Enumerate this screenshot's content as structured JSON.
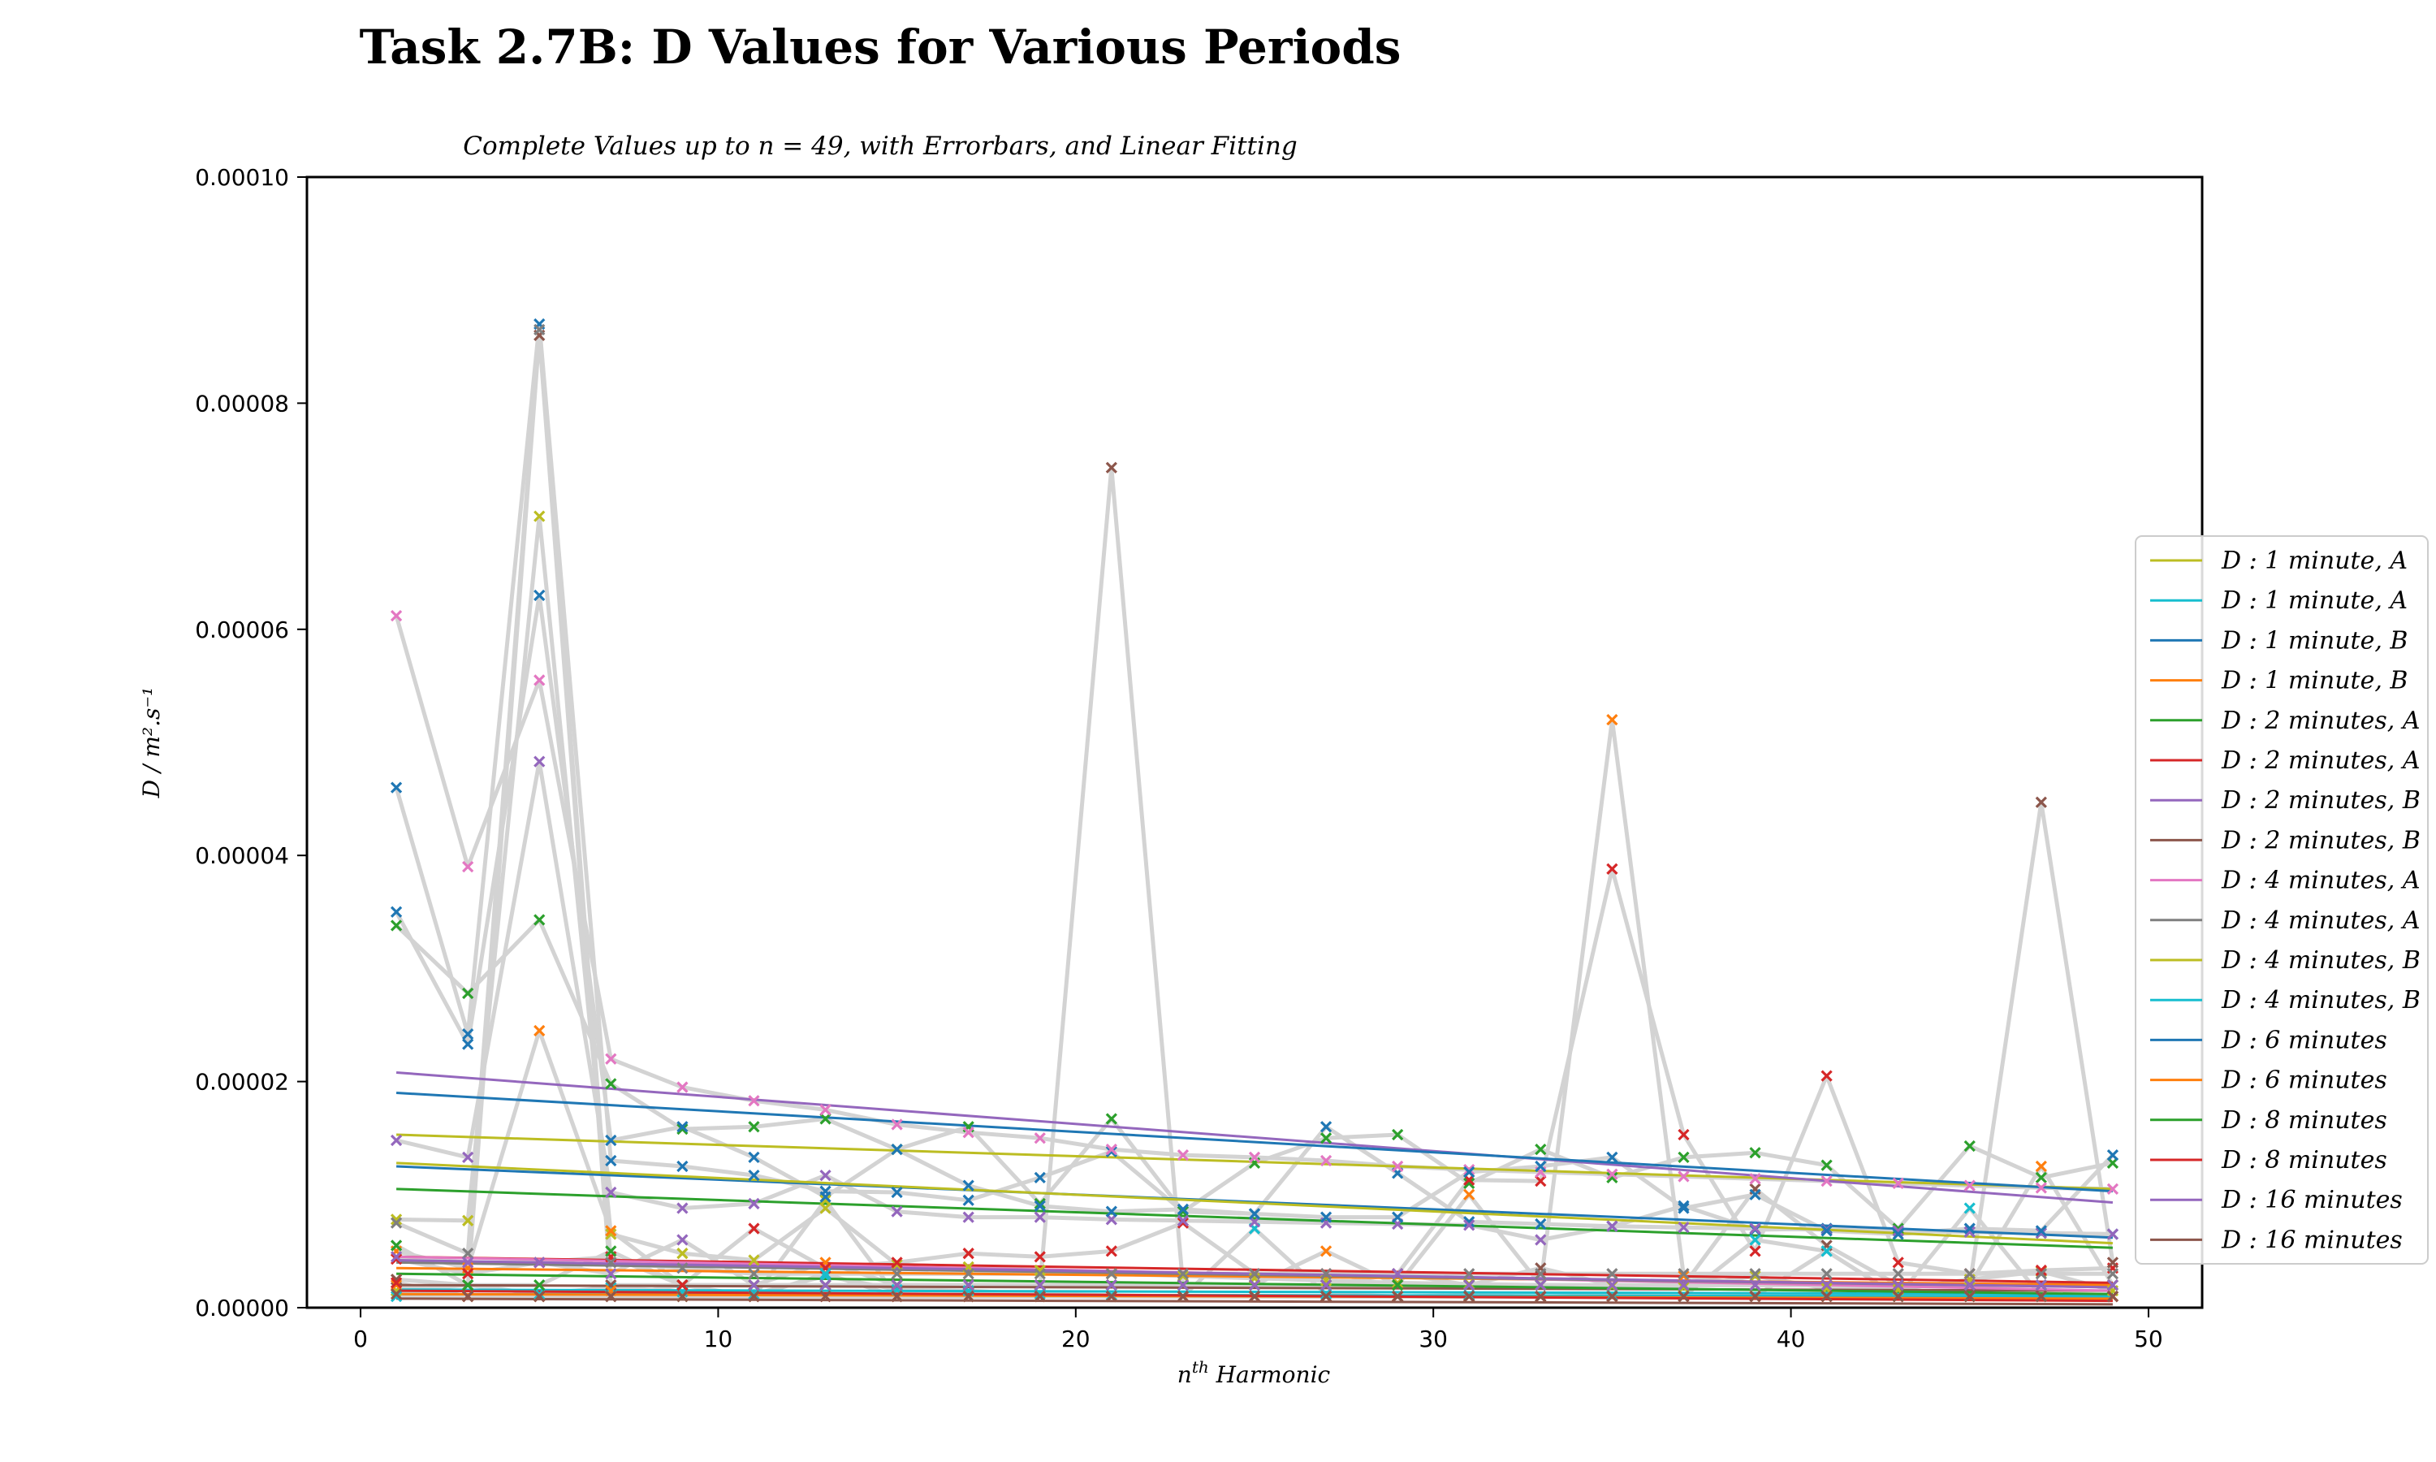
{
  "chart_data": {
    "type": "scatter",
    "title": "Task 2.7B: D Values for Various Periods",
    "subtitle": "Complete Values up to n = 49, with Errorbars, and Linear Fitting",
    "xlabel": "n^th Harmonic",
    "xlabel_base": "n",
    "xlabel_sup": "th",
    "xlabel_rest": " Harmonic",
    "ylabel": "D / m².s⁻¹",
    "xlim": [
      -1.5,
      51.5
    ],
    "ylim": [
      0,
      0.0001
    ],
    "x_ticks": [
      0,
      10,
      20,
      30,
      40,
      50
    ],
    "x_tick_labels": [
      "0",
      "10",
      "20",
      "30",
      "40",
      "50"
    ],
    "y_ticks": [
      0,
      2e-05,
      4e-05,
      6e-05,
      8e-05,
      0.0001
    ],
    "y_tick_labels": [
      "0.00000",
      "0.00002",
      "0.00004",
      "0.00006",
      "0.00008",
      "0.00010"
    ],
    "legend_position": "center-right",
    "errorbar_color": "#d3d3d3",
    "x": [
      1,
      3,
      5,
      7,
      9,
      11,
      13,
      15,
      17,
      19,
      21,
      23,
      25,
      27,
      29,
      31,
      33,
      35,
      37,
      39,
      41,
      43,
      45,
      47,
      49
    ],
    "series": [
      {
        "name": "D : 1 minute, A",
        "color": "#bcbd22",
        "values": [
          7.8e-06,
          7.7e-06,
          7e-05,
          6.5e-06,
          4.8e-06,
          4.2e-06,
          8.8e-06,
          3.8e-06,
          3.6e-06,
          3.3e-06,
          3e-06,
          2.8e-06,
          2.6e-06,
          2.4e-06,
          2.2e-06,
          2.1e-06,
          2e-06,
          1.9e-06,
          1.8e-06,
          2.8e-06,
          1.7e-06,
          1.6e-06,
          2.5e-06,
          3.2e-06,
          1.5e-06
        ],
        "fit": [
          1.53e-05,
          1.05e-05
        ]
      },
      {
        "name": "D : 1 minute, A",
        "color": "#17becf",
        "values": [
          1.5e-06,
          2e-06,
          1.2e-06,
          1.8e-06,
          1.4e-06,
          1.2e-06,
          2.8e-06,
          1.6e-06,
          1.5e-06,
          1.2e-06,
          1.1e-06,
          1e-06,
          7e-06,
          1.2e-06,
          1e-06,
          1.1e-06,
          1e-06,
          1.1e-06,
          1e-06,
          6e-06,
          5e-06,
          1e-06,
          8.8e-06,
          1e-06,
          1e-06
        ],
        "fit": [
          1.6e-06,
          1.2e-06
        ]
      },
      {
        "name": "D : 1 minute, B",
        "color": "#1f77b4",
        "values": [
          4.6e-05,
          2.42e-05,
          8.7e-05,
          1.3e-05,
          1.25e-05,
          1.17e-05,
          1.03e-05,
          1.02e-05,
          9.5e-06,
          1.15e-05,
          1.38e-05,
          8.5e-06,
          8.3e-06,
          1.6e-05,
          1.19e-05,
          7.6e-06,
          7.4e-06,
          7.2e-06,
          9e-06,
          6.9e-06,
          7e-06,
          6.8e-06,
          6.7e-06,
          6.6e-06,
          6.5e-06
        ],
        "fit": [
          1.25e-05,
          6.2e-06
        ]
      },
      {
        "name": "D : 1 minute, B",
        "color": "#ff7f0e",
        "values": [
          5e-06,
          3.5e-06,
          2.45e-05,
          6.8e-06,
          2e-06,
          2e-06,
          4e-06,
          2e-06,
          2e-06,
          2e-06,
          2e-06,
          2e-06,
          2e-06,
          5e-06,
          2e-06,
          1e-05,
          2e-06,
          5.2e-05,
          2.8e-06,
          2e-06,
          2e-06,
          2e-06,
          2e-06,
          1.25e-05,
          2e-06
        ],
        "fit": [
          3.5e-06,
          2e-06
        ]
      },
      {
        "name": "D : 2 minutes, A",
        "color": "#2ca02c",
        "values": [
          3.38e-05,
          2.78e-05,
          3.43e-05,
          1.98e-05,
          1.58e-05,
          1.6e-05,
          1.67e-05,
          1.4e-05,
          1.6e-05,
          9.2e-06,
          1.67e-05,
          8.5e-06,
          1.28e-05,
          1.5e-05,
          1.53e-05,
          1.1e-05,
          1.4e-05,
          1.15e-05,
          1.33e-05,
          1.37e-05,
          1.26e-05,
          7e-06,
          1.43e-05,
          1.15e-05,
          1.28e-05
        ],
        "fit": [
          1.05e-05,
          5.3e-06
        ]
      },
      {
        "name": "D : 2 minutes, A",
        "color": "#d62728",
        "values": [
          4.3e-06,
          3e-06,
          4e-06,
          4.5e-06,
          2e-06,
          7e-06,
          3.5e-06,
          4e-06,
          4.8e-06,
          4.5e-06,
          5e-06,
          7.5e-06,
          3e-06,
          3e-06,
          3e-06,
          1.13e-05,
          1.12e-05,
          3.88e-05,
          1.53e-05,
          5e-06,
          2.05e-05,
          4e-06,
          3e-06,
          3.3e-06,
          3.5e-06
        ],
        "fit": [
          4.5e-06,
          2.2e-06
        ]
      },
      {
        "name": "D : 2 minutes, B",
        "color": "#9467bd",
        "values": [
          1.48e-05,
          1.33e-05,
          4.83e-05,
          1.02e-05,
          8.8e-06,
          9.2e-06,
          1.17e-05,
          8.5e-06,
          8e-06,
          8e-06,
          7.8e-06,
          7.7e-06,
          7.6e-06,
          7.5e-06,
          7.4e-06,
          7.3e-06,
          6e-06,
          7.2e-06,
          7.1e-06,
          7e-06,
          6.9e-06,
          6.8e-06,
          6.7e-06,
          6.6e-06,
          6.5e-06
        ],
        "fit": [
          2.08e-05,
          9.3e-06
        ]
      },
      {
        "name": "D : 2 minutes, B",
        "color": "#8c564b",
        "values": [
          2.5e-06,
          2e-06,
          8.6e-05,
          2e-06,
          2e-06,
          2e-06,
          2e-06,
          2e-06,
          2e-06,
          2e-06,
          7.43e-05,
          2e-06,
          2e-06,
          2e-06,
          2e-06,
          2e-06,
          3.5e-06,
          2e-06,
          2e-06,
          1.05e-05,
          5.5e-06,
          2e-06,
          2e-06,
          4.47e-05,
          4e-06
        ],
        "fit": [
          2e-06,
          1.5e-06
        ]
      },
      {
        "name": "D : 4 minutes, A",
        "color": "#e377c2",
        "values": [
          6.12e-05,
          3.9e-05,
          5.55e-05,
          2.2e-05,
          1.95e-05,
          1.83e-05,
          1.75e-05,
          1.62e-05,
          1.55e-05,
          1.5e-05,
          1.4e-05,
          1.35e-05,
          1.33e-05,
          1.3e-05,
          1.25e-05,
          1.22e-05,
          1.2e-05,
          1.18e-05,
          1.16e-05,
          1.14e-05,
          1.12e-05,
          1.1e-05,
          1.08e-05,
          1.06e-05,
          1.05e-05
        ],
        "fit": [
          4.5e-06,
          1.5e-06
        ]
      },
      {
        "name": "D : 4 minutes, A",
        "color": "#7f7f7f",
        "values": [
          7.5e-06,
          4.8e-06,
          8.65e-05,
          4e-06,
          3.5e-06,
          3e-06,
          3e-06,
          3e-06,
          3e-06,
          3e-06,
          3e-06,
          3e-06,
          3e-06,
          3e-06,
          3e-06,
          3e-06,
          3e-06,
          3e-06,
          3e-06,
          3e-06,
          3e-06,
          3e-06,
          3e-06,
          3e-06,
          3e-06
        ],
        "fit": [
          4e-06,
          1.8e-06
        ]
      },
      {
        "name": "D : 4 minutes, B",
        "color": "#bcbd22",
        "values": [
          1.5e-06,
          1e-06,
          1e-06,
          1e-06,
          1e-06,
          1e-06,
          9.5e-06,
          1e-06,
          1e-06,
          1e-06,
          1e-06,
          1e-06,
          1e-06,
          1e-06,
          1e-06,
          1e-06,
          1e-06,
          1e-06,
          1e-06,
          1e-06,
          1e-06,
          1e-06,
          1e-06,
          1e-06,
          1e-06
        ],
        "fit": [
          1.28e-05,
          5.7e-06
        ]
      },
      {
        "name": "D : 4 minutes, B",
        "color": "#17becf",
        "values": [
          1e-06,
          1e-06,
          1e-06,
          1e-06,
          1e-06,
          1e-06,
          3e-06,
          1e-06,
          1e-06,
          1e-06,
          1e-06,
          1e-06,
          1e-06,
          1e-06,
          1e-06,
          1e-06,
          1e-06,
          1e-06,
          1e-06,
          1e-06,
          5e-06,
          1e-06,
          1e-06,
          1e-06,
          1e-06
        ],
        "fit": [
          1.2e-06,
          1e-06
        ]
      },
      {
        "name": "D : 6 minutes",
        "color": "#1f77b4",
        "values": [
          3.5e-05,
          2.33e-05,
          6.3e-05,
          1.48e-05,
          1.6e-05,
          1.33e-05,
          9.8e-06,
          1.4e-05,
          1.08e-05,
          9e-06,
          8.5e-06,
          8.7e-06,
          8.3e-06,
          8e-06,
          8e-06,
          1.2e-05,
          1.25e-05,
          1.33e-05,
          8.8e-06,
          1e-05,
          6.8e-06,
          6.5e-06,
          7e-06,
          6.8e-06,
          1.35e-05
        ],
        "fit": [
          1.9e-05,
          1.03e-05
        ]
      },
      {
        "name": "D : 6 minutes",
        "color": "#ff7f0e",
        "values": [
          2e-06,
          1e-06,
          1e-06,
          1.5e-06,
          1e-06,
          1e-06,
          1e-06,
          1e-06,
          1e-06,
          1e-06,
          1e-06,
          1e-06,
          1e-06,
          1e-06,
          1e-06,
          1e-06,
          1e-06,
          1e-06,
          1e-06,
          1e-06,
          1e-06,
          1e-06,
          1e-06,
          1e-06,
          1e-06
        ],
        "fit": [
          1.2e-06,
          8e-07
        ]
      },
      {
        "name": "D : 8 minutes",
        "color": "#2ca02c",
        "values": [
          5.5e-06,
          2e-06,
          2e-06,
          5e-06,
          2e-06,
          2e-06,
          2e-06,
          2e-06,
          2e-06,
          2e-06,
          2e-06,
          2e-06,
          2e-06,
          2e-06,
          2e-06,
          2e-06,
          2e-06,
          2e-06,
          2e-06,
          2e-06,
          2e-06,
          2e-06,
          2e-06,
          2e-06,
          2e-06
        ],
        "fit": [
          3e-06,
          1.2e-06
        ]
      },
      {
        "name": "D : 8 minutes",
        "color": "#d62728",
        "values": [
          2.2e-06,
          1e-06,
          1e-06,
          1e-06,
          2e-06,
          1e-06,
          1e-06,
          1e-06,
          1e-06,
          1e-06,
          1e-06,
          1e-06,
          1e-06,
          1e-06,
          1e-06,
          1e-06,
          1e-06,
          1e-06,
          1e-06,
          1e-06,
          1e-06,
          1e-06,
          1e-06,
          1e-06,
          1e-06
        ],
        "fit": [
          1.5e-06,
          6e-07
        ]
      },
      {
        "name": "D : 16 minutes",
        "color": "#9467bd",
        "values": [
          4.5e-06,
          4e-06,
          4e-06,
          3e-06,
          6e-06,
          2e-06,
          2e-06,
          2e-06,
          2e-06,
          2e-06,
          2e-06,
          2e-06,
          2e-06,
          2e-06,
          3e-06,
          2e-06,
          2e-06,
          2e-06,
          2e-06,
          2e-06,
          2e-06,
          2e-06,
          2e-06,
          2e-06,
          2e-06
        ],
        "fit": [
          4.2e-06,
          1.8e-06
        ]
      },
      {
        "name": "D : 16 minutes",
        "color": "#8c564b",
        "values": [
          1.2e-06,
          1e-06,
          1e-06,
          1e-06,
          1e-06,
          1e-06,
          1e-06,
          1e-06,
          1e-06,
          1e-06,
          1e-06,
          1e-06,
          1e-06,
          1e-06,
          1e-06,
          1e-06,
          1e-06,
          1e-06,
          1e-06,
          1e-06,
          1e-06,
          1e-06,
          1e-06,
          1e-06,
          1e-06
        ],
        "fit": [
          8e-07,
          3e-07
        ]
      }
    ]
  }
}
